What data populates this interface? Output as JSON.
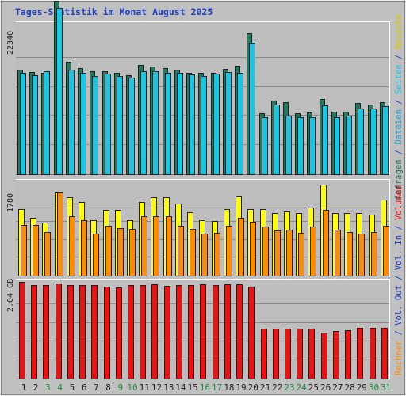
{
  "title": "Tages-Statistik im Monat August 2025",
  "colors": {
    "background": "#c0c0c0",
    "plot_bg": "#bdbdbd",
    "title": "#1f3fbf",
    "requests": "#1f7a5f",
    "files": "#17c8e6",
    "pages": "#16a8d8",
    "visits": "#ffff00",
    "hosts": "#ff8c00",
    "volume": "#ee1111",
    "weekend_day": "#1f8a3f",
    "weekday": "#1f1f1f",
    "grid": "#8a8a8a"
  },
  "right_labels": {
    "panel1": [
      {
        "text": "Anfragen",
        "color": "#1f7a5f"
      },
      {
        "text": " / ",
        "color": "#1f3fbf"
      },
      {
        "text": "Dateien",
        "color": "#17a6d6"
      },
      {
        "text": " / ",
        "color": "#1f3fbf"
      },
      {
        "text": "Seiten",
        "color": "#17c8e6"
      },
      {
        "text": " / ",
        "color": "#1f3fbf"
      },
      {
        "text": "Besuche",
        "color": "#d8c800"
      }
    ],
    "panel2": [
      {
        "text": "Rechner",
        "color": "#ff8c00"
      },
      {
        "text": " / ",
        "color": "#1f3fbf"
      },
      {
        "text": "Vol. Out",
        "color": "#1f3fbf"
      },
      {
        "text": " / ",
        "color": "#1f3fbf"
      },
      {
        "text": "Vol. In",
        "color": "#1f3fbf"
      },
      {
        "text": " / ",
        "color": "#1f3fbf"
      },
      {
        "text": "Volumen",
        "color": "#ee1111"
      }
    ]
  },
  "chart_data": [
    {
      "type": "bar",
      "ytick": "22340",
      "ymax": 22340,
      "categories": [
        "1",
        "2",
        "3",
        "4",
        "5",
        "6",
        "7",
        "8",
        "9",
        "10",
        "11",
        "12",
        "13",
        "14",
        "15",
        "16",
        "17",
        "18",
        "19",
        "20",
        "21",
        "22",
        "23",
        "24",
        "25",
        "26",
        "27",
        "28",
        "29",
        "30",
        "31"
      ],
      "weekend": [
        false,
        false,
        true,
        true,
        false,
        false,
        false,
        false,
        true,
        true,
        false,
        false,
        false,
        false,
        false,
        true,
        true,
        false,
        false,
        false,
        false,
        false,
        true,
        true,
        false,
        false,
        false,
        false,
        false,
        true,
        true
      ],
      "series": [
        {
          "name": "Anfragen",
          "color_key": "requests",
          "values": [
            16000,
            15700,
            15600,
            26600,
            17300,
            16300,
            15800,
            15800,
            15600,
            15200,
            16800,
            16500,
            16300,
            16000,
            15500,
            15600,
            15600,
            16200,
            16600,
            21600,
            9400,
            11300,
            11000,
            9300,
            9500,
            11500,
            9600,
            9600,
            10900,
            10700,
            11000
          ]
        },
        {
          "name": "Dateien",
          "color_key": "files",
          "values": [
            15600,
            15200,
            15800,
            25500,
            16000,
            15600,
            15000,
            15400,
            15000,
            14800,
            15800,
            15800,
            15600,
            15600,
            15300,
            15000,
            15400,
            15700,
            15600,
            20200,
            8700,
            10700,
            9000,
            8700,
            8700,
            10600,
            8700,
            9000,
            10100,
            10100,
            10400
          ]
        }
      ]
    },
    {
      "type": "bar",
      "ytick": "1780",
      "ymax": 1780,
      "categories": [
        "1",
        "2",
        "3",
        "4",
        "5",
        "6",
        "7",
        "8",
        "9",
        "10",
        "11",
        "12",
        "13",
        "14",
        "15",
        "16",
        "17",
        "18",
        "19",
        "20",
        "21",
        "22",
        "23",
        "24",
        "25",
        "26",
        "27",
        "28",
        "29",
        "30",
        "31"
      ],
      "series": [
        {
          "name": "Besuche",
          "color_key": "visits",
          "values": [
            1320,
            1150,
            1060,
            1650,
            1560,
            1470,
            1110,
            1300,
            1310,
            1100,
            1460,
            1560,
            1560,
            1440,
            1260,
            1100,
            1080,
            1320,
            1580,
            1320,
            1320,
            1240,
            1280,
            1240,
            1360,
            1810,
            1250,
            1240,
            1240,
            1220,
            1520
          ]
        },
        {
          "name": "Rechner",
          "color_key": "hosts",
          "values": [
            1010,
            1010,
            860,
            1650,
            1180,
            1100,
            830,
            990,
            950,
            930,
            1180,
            1180,
            1180,
            1000,
            930,
            830,
            850,
            1000,
            1150,
            1070,
            970,
            900,
            910,
            850,
            970,
            1300,
            920,
            860,
            830,
            860,
            990
          ]
        }
      ]
    },
    {
      "type": "bar",
      "ytick": "2.04 GB",
      "ymax": 2.04,
      "categories": [
        "1",
        "2",
        "3",
        "4",
        "5",
        "6",
        "7",
        "8",
        "9",
        "10",
        "11",
        "12",
        "13",
        "14",
        "15",
        "16",
        "17",
        "18",
        "19",
        "20",
        "21",
        "22",
        "23",
        "24",
        "25",
        "26",
        "27",
        "28",
        "29",
        "30",
        "31"
      ],
      "series": [
        {
          "name": "Volumen",
          "color_key": "volume",
          "values": [
            2.13,
            2.06,
            2.06,
            2.09,
            2.06,
            2.06,
            2.06,
            2.02,
            2.0,
            2.06,
            2.06,
            2.08,
            2.04,
            2.06,
            2.06,
            2.07,
            2.06,
            2.07,
            2.08,
            2.03,
            1.1,
            1.09,
            1.1,
            1.1,
            1.09,
            1.01,
            1.04,
            1.06,
            1.12,
            1.12,
            1.12
          ]
        }
      ]
    }
  ]
}
